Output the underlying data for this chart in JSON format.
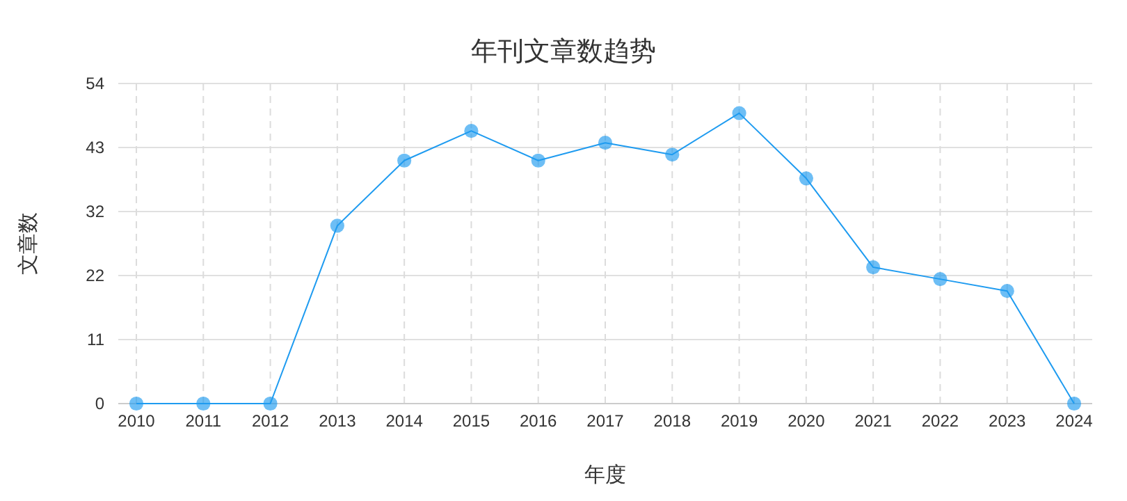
{
  "chart_data": {
    "type": "line",
    "title": "年刊文章数趋势",
    "xlabel": "年度",
    "ylabel": "文章数",
    "categories": [
      "2010",
      "2011",
      "2012",
      "2013",
      "2014",
      "2015",
      "2016",
      "2017",
      "2018",
      "2019",
      "2020",
      "2021",
      "2022",
      "2023",
      "2024"
    ],
    "series": [
      {
        "color": "#1e9bf0",
        "values": [
          0,
          0,
          0,
          30,
          41,
          46,
          41,
          44,
          42,
          49,
          38,
          23,
          21,
          19,
          0
        ]
      }
    ],
    "ylim": [
      0,
      54
    ],
    "yticks": [
      0,
      {
        "value": 10.8,
        "label": "11"
      },
      {
        "value": 21.6,
        "label": "22"
      },
      {
        "value": 32.4,
        "label": "32"
      },
      {
        "value": 43.2,
        "label": "43"
      },
      54
    ],
    "grid": true,
    "marker": "circle",
    "line_style": "solid"
  }
}
